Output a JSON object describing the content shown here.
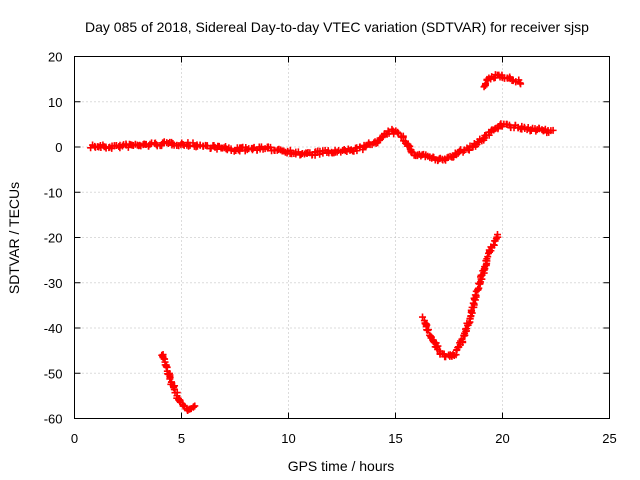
{
  "chart_data": {
    "type": "scatter",
    "title": "Day 085 of 2018, Sidereal Day-to-day VTEC variation (SDTVAR) for receiver sjsp",
    "xlabel": "GPS time / hours",
    "ylabel": "SDTVAR / TECUs",
    "xlim": [
      0,
      25
    ],
    "ylim": [
      -60,
      20
    ],
    "grid": true,
    "xticks": [
      0,
      5,
      10,
      15,
      20,
      25
    ],
    "yticks": [
      -60,
      -50,
      -40,
      -30,
      -20,
      -10,
      0,
      10,
      20
    ],
    "marker_color": "#ff0000",
    "series": [
      {
        "name": "sdtvar-main",
        "x": [
          0.8,
          1.5,
          2.5,
          3.5,
          4.5,
          5.5,
          6.5,
          7.5,
          8.5,
          9.5,
          10.5,
          11.2,
          11.5,
          12.5,
          13.5,
          14.2,
          14.8,
          15.3,
          15.8,
          16.5,
          17.0,
          17.5,
          18.0,
          18.5,
          19.0,
          19.5,
          19.9,
          20.5,
          21.0,
          21.5,
          22.0,
          22.4
        ],
        "y": [
          0.2,
          0.0,
          0.3,
          0.5,
          0.8,
          0.5,
          0.0,
          -0.6,
          -0.3,
          -0.5,
          -1.5,
          -1.5,
          -1.2,
          -1.0,
          -0.2,
          1.5,
          3.5,
          2.5,
          -1.5,
          -2.0,
          -3.0,
          -2.5,
          -1.0,
          -0.2,
          1.5,
          3.5,
          5.0,
          4.5,
          4.0,
          4.0,
          3.5,
          3.2
        ]
      },
      {
        "name": "sdtvar-upper-arc",
        "x": [
          19.1,
          19.4,
          19.7,
          20.0,
          20.3,
          20.6,
          20.9
        ],
        "y": [
          13.5,
          15.0,
          15.8,
          15.8,
          15.2,
          14.5,
          14.2
        ]
      },
      {
        "name": "sdtvar-lower-left",
        "x": [
          4.1,
          4.3,
          4.5,
          4.7,
          4.9,
          5.1,
          5.3,
          5.5,
          5.7
        ],
        "y": [
          -45.5,
          -48.5,
          -51.5,
          -54.0,
          -56.0,
          -57.2,
          -58.0,
          -57.8,
          -57.0
        ]
      },
      {
        "name": "sdtvar-lower-right",
        "x": [
          16.3,
          16.6,
          16.9,
          17.2,
          17.5,
          17.8,
          18.1,
          18.4,
          18.7,
          19.0,
          19.3,
          19.6,
          19.8
        ],
        "y": [
          -38.0,
          -41.5,
          -44.0,
          -46.0,
          -46.5,
          -45.5,
          -43.0,
          -39.0,
          -34.0,
          -29.0,
          -24.5,
          -21.0,
          -19.5
        ]
      }
    ]
  }
}
